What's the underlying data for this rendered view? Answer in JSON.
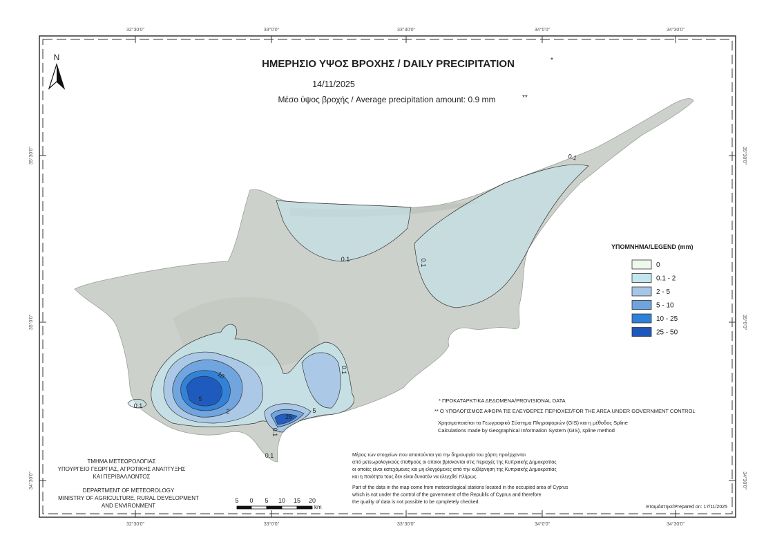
{
  "north": "N",
  "title": "ΗΜΕΡΗΣΙΟ ΥΨΟΣ ΒΡΟΧΗΣ / DAILY PRECIPITATION",
  "title_marker": "*",
  "date": "14/11/2025",
  "subtitle": "Μέσο ύψος βροχής / Average precipitation amount: 0.9 mm",
  "subtitle_marker": "**",
  "coordinates": {
    "longitudes": [
      "32°30'0\"",
      "33°0'0\"",
      "33°30'0\"",
      "34°0'0\"",
      "34°30'0\""
    ],
    "latitudes": [
      "35°30'0\"",
      "35°0'0\"",
      "34°30'0\""
    ]
  },
  "legend": {
    "title": "ΥΠΟΜΝΗΜΑ/LEGEND (mm)",
    "items": [
      {
        "label": "0",
        "color": "#eef8ec"
      },
      {
        "label": "0.1 - 2",
        "color": "#c3e6ee"
      },
      {
        "label": "2 - 5",
        "color": "#a7c6e6"
      },
      {
        "label": "5 - 10",
        "color": "#6ea3de"
      },
      {
        "label": "10 - 25",
        "color": "#2f80d8"
      },
      {
        "label": "25 - 50",
        "color": "#1f58bd"
      }
    ]
  },
  "contour_labels": [
    "0.1",
    "0.1",
    "0.1",
    "0.1",
    "0.1",
    "10",
    "5",
    "2",
    "5",
    "25",
    "0.1",
    "0.1"
  ],
  "notes": [
    "* ΠΡΟΚΑΤΑΡΚΤΙΚΑ ΔΕΔΟΜΕΝΑ/PROVISIONAL DATA",
    "** Ο ΥΠΟΛΟΓΙΣΜΟΣ ΑΦΟΡΑ ΤΙΣ ΕΛΕΥΘΕΡΕΣ ΠΕΡΙΟΧΕΣ/FOR THE AREA UNDER GOVERNMENT CONTROL"
  ],
  "method": [
    "Χρησιμοποιείται τα Γεωγραφικό Σύστημα Πληροφοριών (GIS) και η μέθοδος Spline",
    "Calculations made by Geographical Information System (GIS), spline method"
  ],
  "disclaimer_gr": [
    "Μέρος των στοιχείων που απαιτούνται για την δημιουργία του χάρτη προέρχονται",
    "από μετεωρολογικούς σταθμούς οι οποίοι βρίσκονται στις περιοχές της Κυπριακής Δημοκρατίας",
    "οι οποίες είναι κατεχόμενες και μη ελεγχόμενες από την κυβέρνηση της Κυπριακής Δημοκρατίας",
    "και η ποιότητα τους δεν είναι δυνατόν να ελεγχθεί πλήρως."
  ],
  "disclaimer_en": [
    "Part of the data in the map come from meteorological stations located in the occupied area of Cyprus",
    "which is not under the control of the government of the Republic of Cyprus and therefore",
    "the quality of data is not possible to be cpmpletely checked."
  ],
  "department_gr": [
    "ΤΜΗΜΑ ΜΕΤΕΩΡΟΛΟΓΙΑΣ",
    "ΥΠΟΥΡΓΕΙΟ ΓΕΩΡΓΙΑΣ, ΑΓΡΟΤΙΚΗΣ ΑΝΑΠΤΥΞΗΣ",
    "ΚΑΙ ΠΕΡΙΒΑΛΛΟΝΤΟΣ"
  ],
  "department_en": [
    "DEPARTMENT OF METEOROLOGY",
    "MINISTRY OF AGRICULTURE, RURAL DEVELOPMENT",
    "AND ENVIRONMENT"
  ],
  "scale": {
    "labels": [
      "5",
      "0",
      "5",
      "10",
      "15",
      "20"
    ],
    "unit": "km"
  },
  "prepared": "Ετοιμάστηκε/Prepared on: 17/11/2025"
}
